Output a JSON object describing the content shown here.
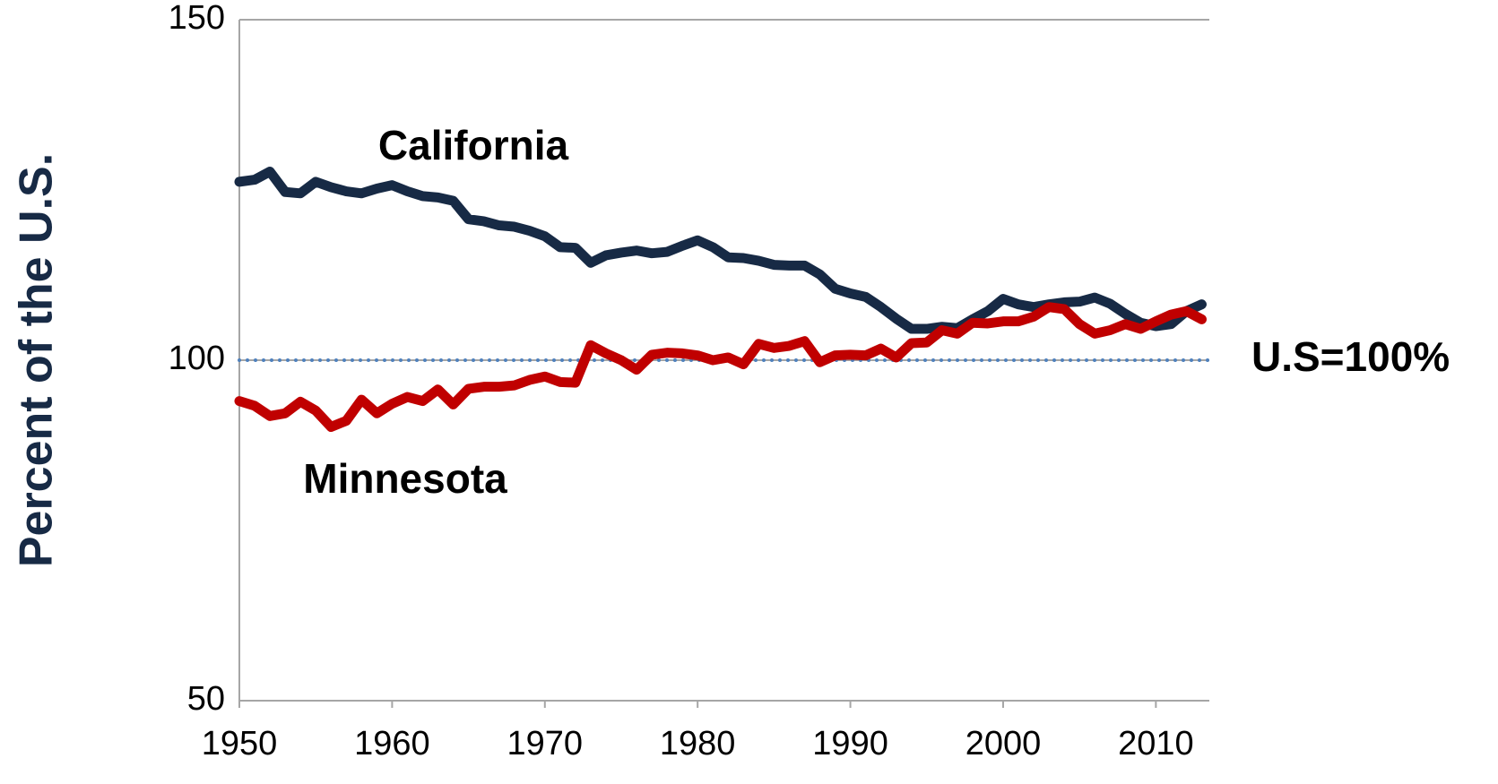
{
  "chart_data": {
    "type": "line",
    "y_label": "Percent of the U.S.",
    "x": [
      1950,
      1951,
      1952,
      1953,
      1954,
      1955,
      1956,
      1957,
      1958,
      1959,
      1960,
      1961,
      1962,
      1963,
      1964,
      1965,
      1966,
      1967,
      1968,
      1969,
      1970,
      1971,
      1972,
      1973,
      1974,
      1975,
      1976,
      1977,
      1978,
      1979,
      1980,
      1981,
      1982,
      1983,
      1984,
      1985,
      1986,
      1987,
      1988,
      1989,
      1990,
      1991,
      1992,
      1993,
      1994,
      1995,
      1996,
      1997,
      1998,
      1999,
      2000,
      2001,
      2002,
      2003,
      2004,
      2005,
      2006,
      2007,
      2008,
      2009,
      2010,
      2011,
      2012,
      2013
    ],
    "series": [
      {
        "name": "California",
        "color": "#172a45",
        "values": [
          126.2,
          126.5,
          127.7,
          124.7,
          124.5,
          126.2,
          125.4,
          124.8,
          124.5,
          125.2,
          125.7,
          124.8,
          124.1,
          123.9,
          123.4,
          120.7,
          120.4,
          119.8,
          119.6,
          119.0,
          118.2,
          116.6,
          116.5,
          114.3,
          115.4,
          115.8,
          116.1,
          115.7,
          115.9,
          116.8,
          117.6,
          116.6,
          115.1,
          115.0,
          114.6,
          114.0,
          113.9,
          113.9,
          112.6,
          110.5,
          109.8,
          109.3,
          107.8,
          106.1,
          104.6,
          104.6,
          104.9,
          104.7,
          106.0,
          107.2,
          109.0,
          108.2,
          107.8,
          108.2,
          108.5,
          108.6,
          109.2,
          108.3,
          106.8,
          105.5,
          105.0,
          105.3,
          107.2,
          108.2
        ]
      },
      {
        "name": "Minnesota",
        "color": "#c00000",
        "values": [
          94.0,
          93.3,
          91.8,
          92.2,
          93.9,
          92.6,
          90.2,
          91.1,
          94.2,
          92.2,
          93.6,
          94.6,
          94.0,
          95.7,
          93.5,
          95.8,
          96.1,
          96.1,
          96.3,
          97.1,
          97.6,
          96.8,
          96.7,
          102.2,
          101.0,
          100.0,
          98.6,
          100.8,
          101.1,
          101.0,
          100.7,
          100.0,
          100.4,
          99.4,
          102.4,
          101.8,
          102.1,
          102.8,
          99.7,
          100.7,
          100.8,
          100.7,
          101.7,
          100.4,
          102.5,
          102.6,
          104.4,
          103.9,
          105.5,
          105.4,
          105.7,
          105.7,
          106.4,
          107.8,
          107.5,
          105.3,
          103.9,
          104.4,
          105.3,
          104.6,
          105.7,
          106.7,
          107.2,
          106.0
        ]
      }
    ],
    "reference_line": {
      "value": 100,
      "label": "U.S=100%",
      "color": "#4f81bd"
    },
    "xlim": [
      1950,
      2013.5
    ],
    "xticks": [
      1950,
      1960,
      1970,
      1980,
      1990,
      2000,
      2010
    ],
    "ylim": [
      50,
      150
    ],
    "yticks": [
      50,
      100,
      150
    ],
    "grid": true
  }
}
